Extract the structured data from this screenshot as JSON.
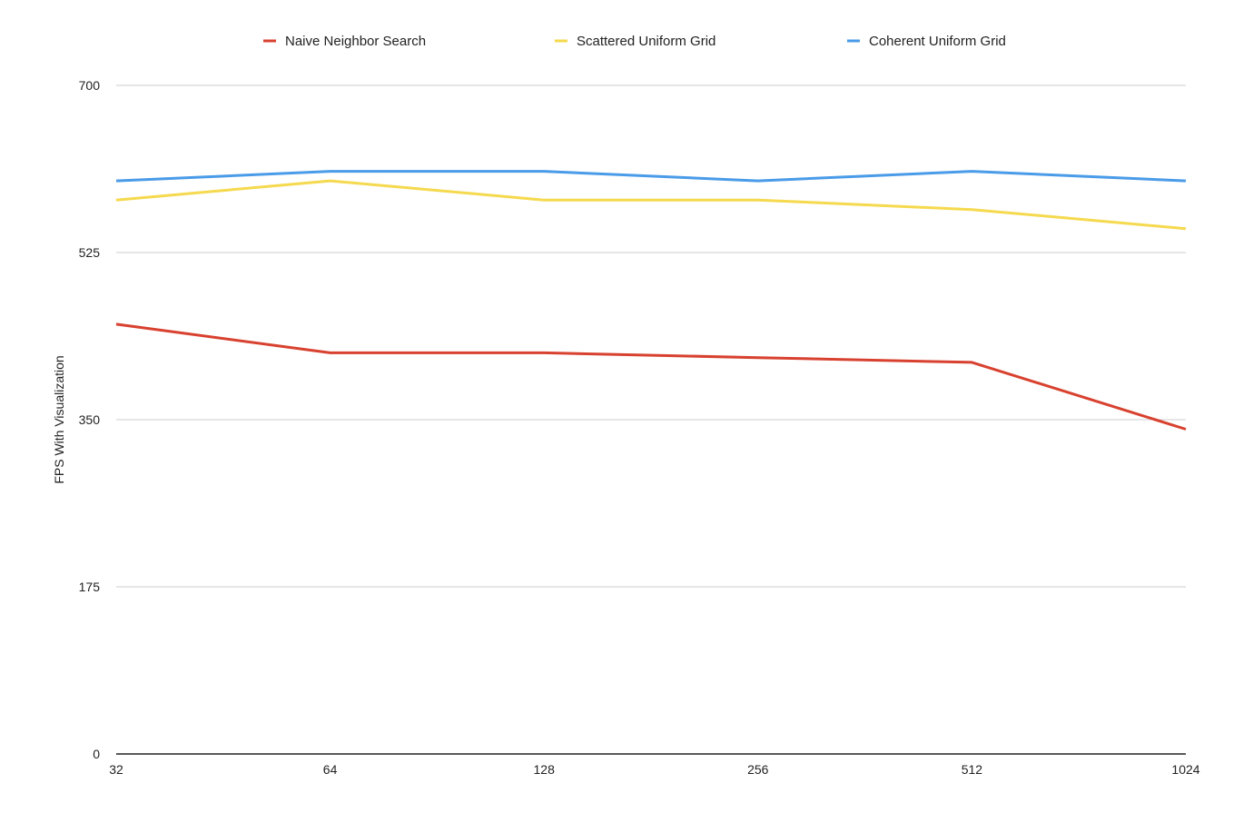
{
  "chart_data": {
    "type": "line",
    "title": "",
    "xlabel": "",
    "ylabel": "FPS With Visualization",
    "categories": [
      "32",
      "64",
      "128",
      "256",
      "512",
      "1024"
    ],
    "ylim": [
      0,
      700
    ],
    "yticks": [
      "0",
      "175",
      "350",
      "525",
      "700"
    ],
    "grid": true,
    "legend_position": "top",
    "series": [
      {
        "name": "Naive Neighbor Search",
        "color": "#d8412f",
        "values": [
          450,
          420,
          420,
          415,
          410,
          340
        ]
      },
      {
        "name": "Scattered Uniform Grid",
        "color": "#f5d94e",
        "values": [
          580,
          600,
          580,
          580,
          570,
          550
        ]
      },
      {
        "name": "Coherent Uniform Grid",
        "color": "#4a9be8",
        "values": [
          600,
          610,
          610,
          600,
          610,
          600
        ]
      }
    ]
  }
}
